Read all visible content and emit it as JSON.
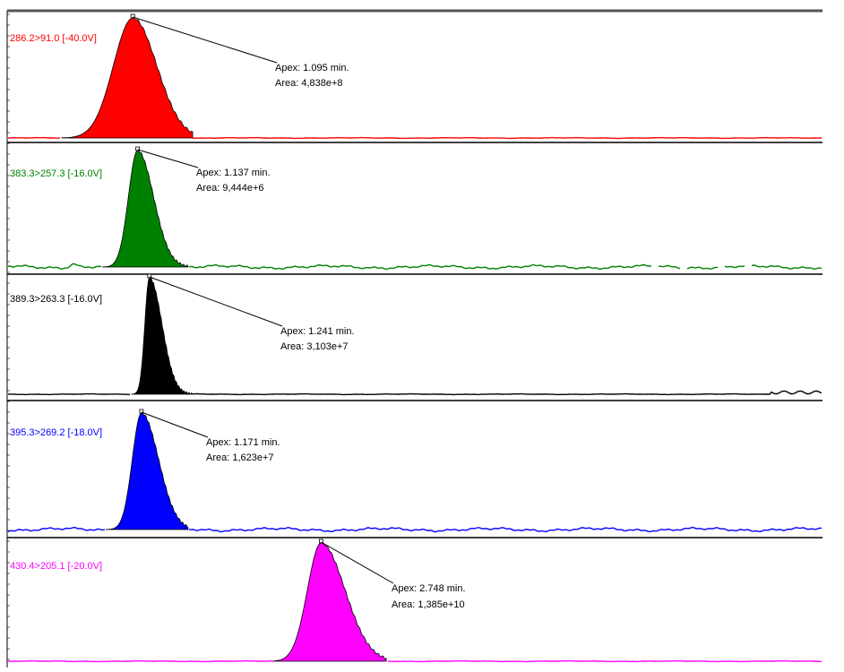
{
  "chart_data": {
    "type": "line",
    "title": "",
    "xlabel": "",
    "ylabel": "",
    "x_unit": "min",
    "grid": false,
    "legend": "none",
    "xlim": [
      0.0,
      7.15
    ],
    "series": [
      {
        "name": "286.2>91.0 [-40.0V]",
        "color": "#ff0000",
        "apex_label": "Apex: 1.095 min.",
        "area_label": "Area: 4,838e+8",
        "apex_min": 1.095,
        "peak": {
          "start": 0.47,
          "end": 1.62,
          "sigma_left": 0.17,
          "sigma_right": 0.21
        },
        "baseline_noise": "flat",
        "baseline_gaps": []
      },
      {
        "name": "383.3>257.3 [-16.0V]",
        "color": "#008000",
        "apex_label": "Apex: 1.137 min.",
        "area_label": "Area: 9,444e+6",
        "apex_min": 1.137,
        "peak": {
          "start": 0.83,
          "end": 1.58,
          "sigma_left": 0.08,
          "sigma_right": 0.14
        },
        "baseline_noise": "noisy",
        "baseline_gaps": [
          [
            5.66,
            5.71
          ],
          [
            5.9,
            5.95
          ],
          [
            6.23,
            6.28
          ],
          [
            6.47,
            6.52
          ]
        ]
      },
      {
        "name": "389.3>263.3 [-16.0V]",
        "color": "#000000",
        "apex_label": "Apex: 1.241 min.",
        "area_label": "Area: 3,103e+7",
        "apex_min": 1.241,
        "peak": {
          "start": 1.08,
          "end": 1.62,
          "sigma_left": 0.04,
          "sigma_right": 0.11
        },
        "baseline_noise": "flat",
        "baseline_gaps": []
      },
      {
        "name": "395.3>269.2 [-18.0V]",
        "color": "#0000ff",
        "apex_label": "Apex: 1.171 min.",
        "area_label": "Area: 1,623e+7",
        "apex_min": 1.171,
        "peak": {
          "start": 0.86,
          "end": 1.58,
          "sigma_left": 0.08,
          "sigma_right": 0.15
        },
        "baseline_noise": "noisy",
        "baseline_gaps": []
      },
      {
        "name": "430.4>205.1 [-20.0V]",
        "color": "#ff00ff",
        "apex_label": "Apex: 2.748 min.",
        "area_label": "Area: 1,385e+10",
        "apex_min": 2.748,
        "peak": {
          "start": 2.33,
          "end": 3.32,
          "sigma_left": 0.12,
          "sigma_right": 0.21
        },
        "baseline_noise": "flat",
        "baseline_gaps": []
      }
    ]
  }
}
